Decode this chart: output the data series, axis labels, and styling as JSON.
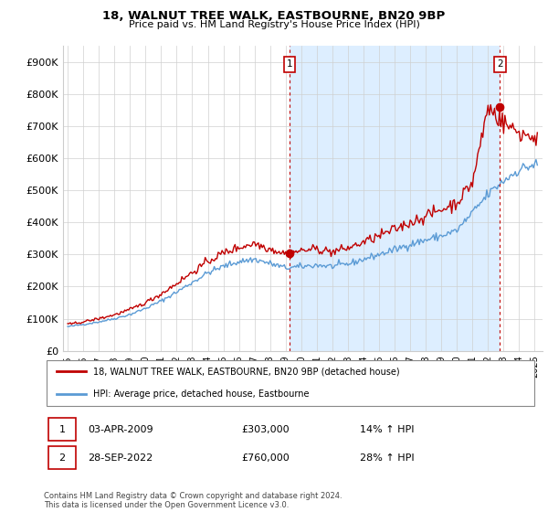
{
  "title": "18, WALNUT TREE WALK, EASTBOURNE, BN20 9BP",
  "subtitle": "Price paid vs. HM Land Registry's House Price Index (HPI)",
  "sale1_date": "03-APR-2009",
  "sale1_price": 303000,
  "sale1_label": "14% ↑ HPI",
  "sale2_date": "28-SEP-2022",
  "sale2_price": 760000,
  "sale2_label": "28% ↑ HPI",
  "legend_line1": "18, WALNUT TREE WALK, EASTBOURNE, BN20 9BP (detached house)",
  "legend_line2": "HPI: Average price, detached house, Eastbourne",
  "footnote": "Contains HM Land Registry data © Crown copyright and database right 2024.\nThis data is licensed under the Open Government Licence v3.0.",
  "hpi_color": "#5b9bd5",
  "price_color": "#c00000",
  "shade_color": "#ddeeff",
  "annotation_color": "#c00000",
  "ylim": [
    0,
    950000
  ],
  "yticks": [
    0,
    100000,
    200000,
    300000,
    400000,
    500000,
    600000,
    700000,
    800000,
    900000
  ],
  "ytick_labels": [
    "£0",
    "£100K",
    "£200K",
    "£300K",
    "£400K",
    "£500K",
    "£600K",
    "£700K",
    "£800K",
    "£900K"
  ],
  "sale1_x": 2009.25,
  "sale2_x": 2022.75,
  "xtick_years": [
    1995,
    1996,
    1997,
    1998,
    1999,
    2000,
    2001,
    2002,
    2003,
    2004,
    2005,
    2006,
    2007,
    2008,
    2009,
    2010,
    2011,
    2012,
    2013,
    2014,
    2015,
    2016,
    2017,
    2018,
    2019,
    2020,
    2021,
    2022,
    2023,
    2024,
    2025
  ]
}
